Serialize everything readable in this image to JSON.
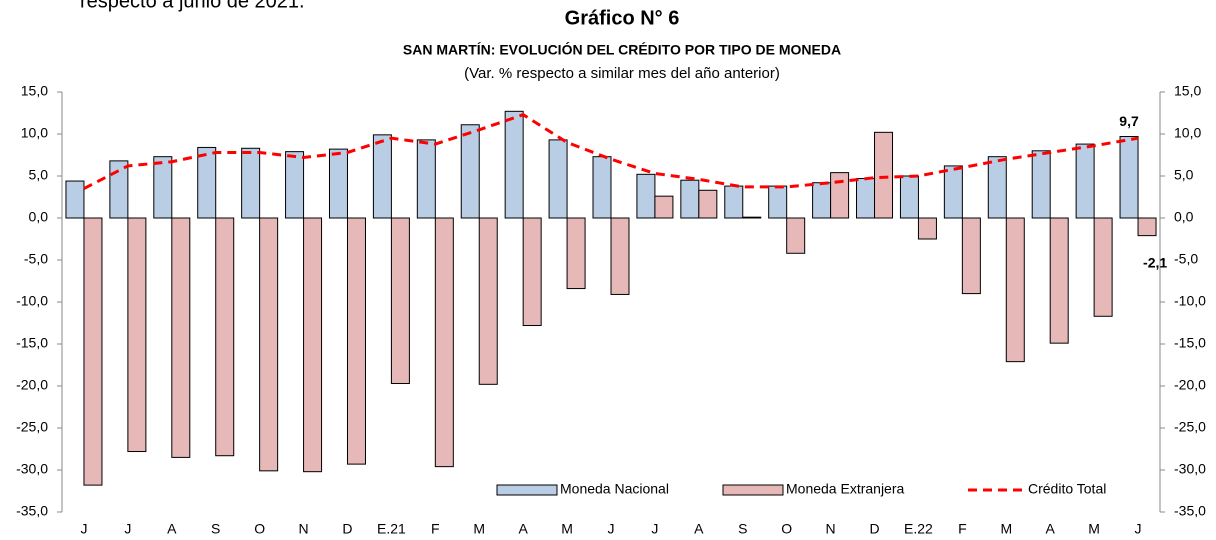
{
  "document_text": "respecto a junio de 2021.",
  "chart_data": {
    "type": "bar_line",
    "title": "Gráfico N° 6",
    "subtitle": "SAN MARTÍN: EVOLUCIÓN DEL CRÉDITO POR TIPO DE MONEDA",
    "note": "(Var. % respecto a similar mes del año anterior)",
    "categories": [
      "J",
      "J",
      "A",
      "S",
      "O",
      "N",
      "D",
      "E.21",
      "F",
      "M",
      "A",
      "M",
      "J",
      "J",
      "A",
      "S",
      "O",
      "N",
      "D",
      "E.22",
      "F",
      "M",
      "A",
      "M",
      "J"
    ],
    "series": [
      {
        "name": "Moneda Nacional",
        "color": "#b9cde5",
        "kind": "bar",
        "values": [
          4.4,
          6.8,
          7.3,
          8.4,
          8.3,
          7.9,
          8.2,
          9.9,
          9.3,
          11.1,
          12.7,
          9.3,
          7.3,
          5.2,
          4.5,
          3.8,
          3.8,
          4.2,
          4.7,
          5.0,
          6.2,
          7.3,
          8.0,
          8.8,
          9.7
        ],
        "value_labels": [
          null,
          null,
          null,
          null,
          null,
          null,
          null,
          null,
          null,
          null,
          null,
          null,
          null,
          null,
          null,
          null,
          null,
          null,
          null,
          null,
          null,
          null,
          null,
          null,
          "9,7"
        ]
      },
      {
        "name": "Moneda Extranjera",
        "color": "#e6b9b8",
        "kind": "bar",
        "values": [
          -31.8,
          -27.8,
          -28.5,
          -28.3,
          -30.1,
          -30.2,
          -29.3,
          -19.7,
          -29.6,
          -19.8,
          -12.8,
          -8.4,
          -9.1,
          2.6,
          3.3,
          0.1,
          -4.2,
          5.4,
          10.2,
          -2.5,
          -9.0,
          -17.1,
          -14.9,
          -11.7,
          -2.1
        ],
        "value_labels": [
          null,
          null,
          null,
          null,
          null,
          null,
          null,
          null,
          null,
          null,
          null,
          null,
          null,
          null,
          null,
          null,
          null,
          null,
          null,
          null,
          null,
          null,
          null,
          null,
          "-2,1"
        ]
      },
      {
        "name": "Crédito Total",
        "color": "#ff0000",
        "kind": "line",
        "values": [
          3.5,
          6.2,
          6.7,
          7.8,
          7.8,
          7.2,
          7.8,
          9.5,
          8.8,
          10.5,
          12.3,
          9.0,
          7.0,
          5.3,
          4.6,
          3.7,
          3.7,
          4.2,
          4.8,
          5.0,
          6.0,
          7.0,
          7.8,
          8.6,
          9.5
        ]
      }
    ],
    "ylim": [
      -35,
      15
    ],
    "yticks": [
      {
        "value": 15,
        "label": "15,0"
      },
      {
        "value": 10,
        "label": "10,0"
      },
      {
        "value": 5,
        "label": "5,0"
      },
      {
        "value": 0,
        "label": "0,0"
      },
      {
        "value": -5,
        "label": "-5,0"
      },
      {
        "value": -10,
        "label": "-10,0"
      },
      {
        "value": -15,
        "label": "-15,0"
      },
      {
        "value": -20,
        "label": "-20,0"
      },
      {
        "value": -25,
        "label": "-25,0"
      },
      {
        "value": -30,
        "label": "-30,0"
      },
      {
        "value": -35,
        "label": "-35,0"
      }
    ],
    "y2lim": [
      -35,
      15
    ],
    "y2ticks": [
      {
        "value": 15,
        "label": "15,0"
      },
      {
        "value": 10,
        "label": "10,0"
      },
      {
        "value": 5,
        "label": "5,0"
      },
      {
        "value": 0,
        "label": "0,0"
      },
      {
        "value": -5,
        "label": "-5,0"
      },
      {
        "value": -10,
        "label": "-10,0"
      },
      {
        "value": -15,
        "label": "-15,0"
      },
      {
        "value": -20,
        "label": "-20,0"
      },
      {
        "value": -25,
        "label": "-25,0"
      },
      {
        "value": -30,
        "label": "-30,0"
      },
      {
        "value": -35,
        "label": "-35,0"
      }
    ],
    "legend": "lower right"
  }
}
